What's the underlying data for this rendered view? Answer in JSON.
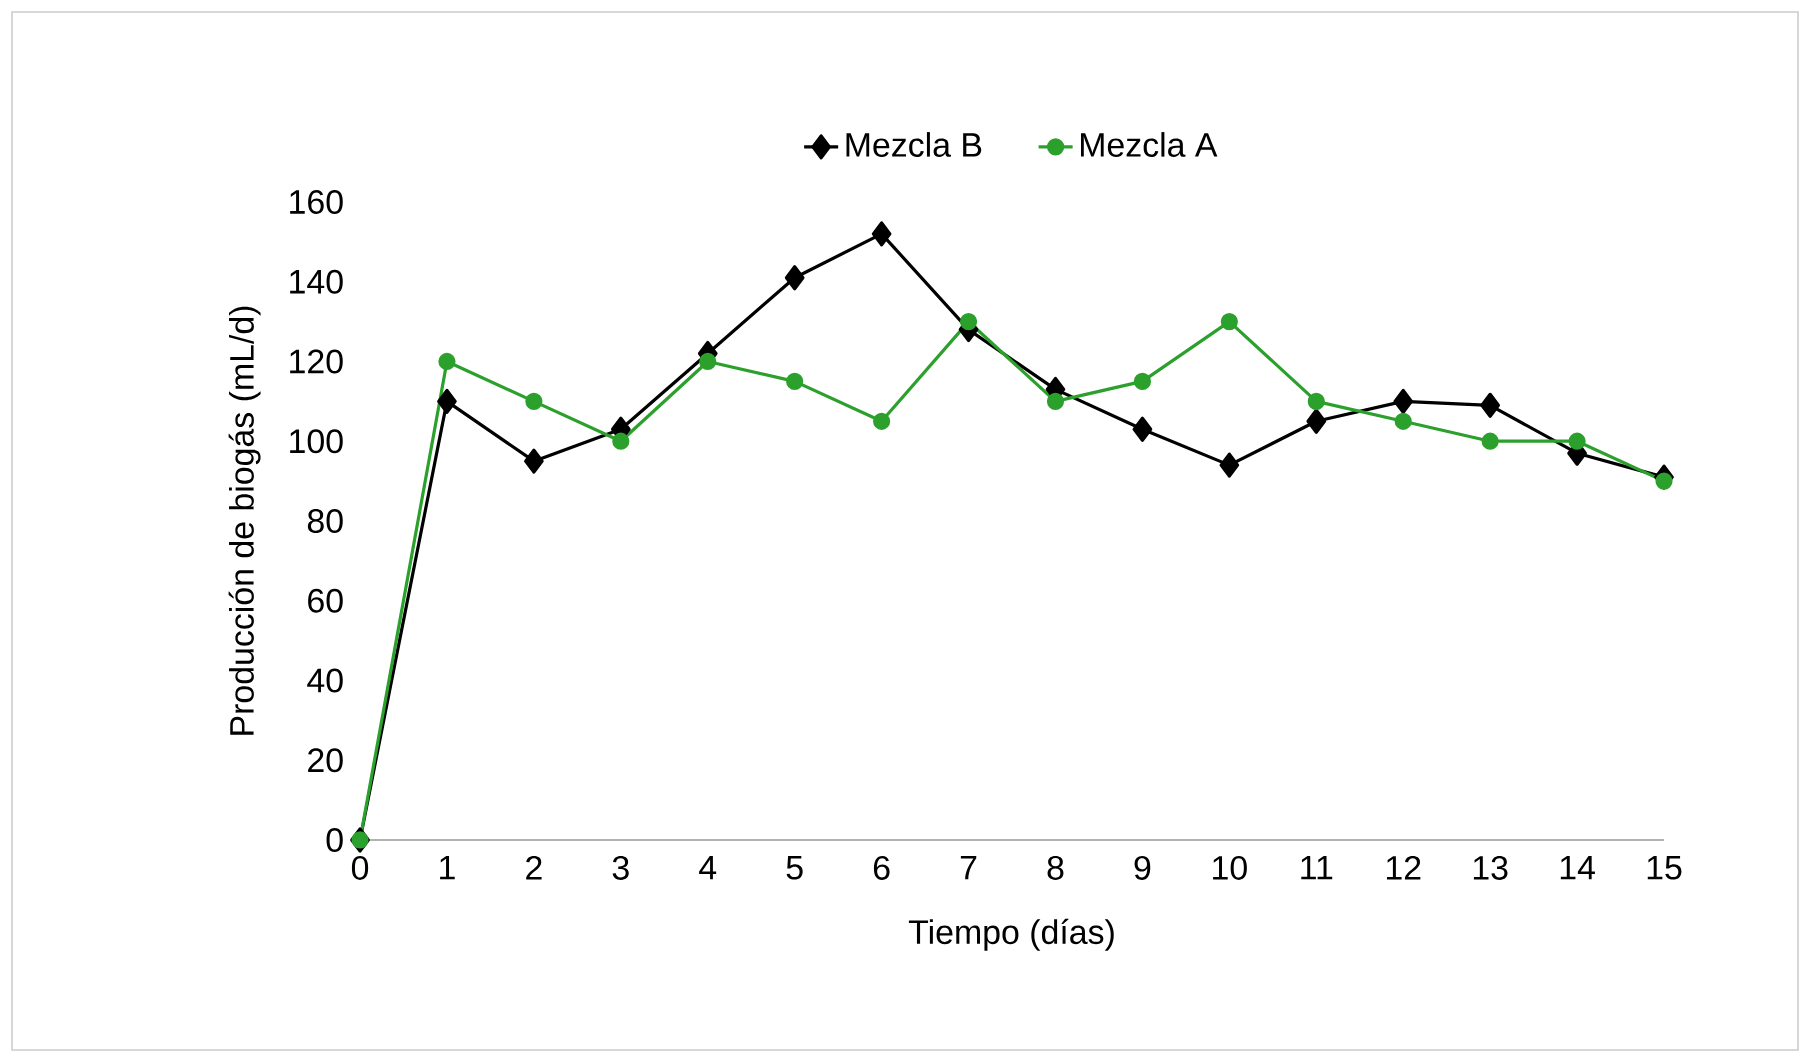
{
  "chart_data": {
    "type": "line",
    "xlabel": "Tiempo (días)",
    "ylabel": "Producción de biogás (mL/d)",
    "x": [
      0,
      1,
      2,
      3,
      4,
      5,
      6,
      7,
      8,
      9,
      10,
      11,
      12,
      13,
      14,
      15
    ],
    "xlim": [
      0,
      15
    ],
    "xticks": [
      0,
      1,
      2,
      3,
      4,
      5,
      6,
      7,
      8,
      9,
      10,
      11,
      12,
      13,
      14,
      15
    ],
    "ylim": [
      0,
      160
    ],
    "yticks": [
      0,
      20,
      40,
      60,
      80,
      100,
      120,
      140,
      160
    ],
    "grid": false,
    "legend": "top",
    "line_style": "solid",
    "series": [
      {
        "name": "Mezcla B",
        "color": "#000000",
        "marker": "diamond",
        "values": [
          0,
          110,
          95,
          103,
          122,
          141,
          152,
          128,
          113,
          103,
          94,
          105,
          110,
          109,
          97,
          91
        ]
      },
      {
        "name": "Mezcla A",
        "color": "#2ca02c",
        "marker": "circle",
        "values": [
          0,
          120,
          110,
          100,
          120,
          115,
          105,
          130,
          110,
          115,
          130,
          110,
          105,
          100,
          100,
          90
        ]
      }
    ]
  }
}
